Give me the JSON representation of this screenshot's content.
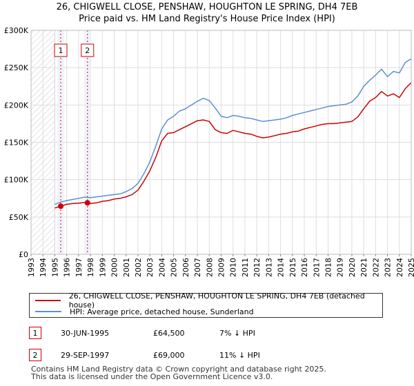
{
  "chart_data": {
    "type": "line",
    "title": "26, CHIGWELL CLOSE, PENSHAW, HOUGHTON LE SPRING, DH4 7EB",
    "subtitle": "Price paid vs. HM Land Registry's House Price Index (HPI)",
    "xlabel": "",
    "ylabel": "",
    "xlim": [
      1993,
      2025
    ],
    "ylim": [
      0,
      300000
    ],
    "y_ticks": [
      0,
      50000,
      100000,
      150000,
      200000,
      250000,
      300000
    ],
    "y_tick_labels": [
      "£0",
      "£50K",
      "£100K",
      "£150K",
      "£200K",
      "£250K",
      "£300K"
    ],
    "x_ticks": [
      1993,
      1994,
      1995,
      1996,
      1997,
      1998,
      1999,
      2000,
      2001,
      2002,
      2003,
      2004,
      2005,
      2006,
      2007,
      2008,
      2009,
      2010,
      2011,
      2012,
      2013,
      2014,
      2015,
      2016,
      2017,
      2018,
      2019,
      2020,
      2021,
      2022,
      2023,
      2024,
      2025
    ],
    "grid": true,
    "hatched_range": [
      1993,
      1995.0
    ],
    "series": [
      {
        "name": "26, CHIGWELL CLOSE, PENSHAW, HOUGHTON LE SPRING, DH4 7EB (detached house)",
        "color": "#cc0000",
        "x": [
          1995.0,
          1995.5,
          1996.0,
          1996.5,
          1997.0,
          1997.5,
          1997.75,
          1998.0,
          1998.5,
          1999.0,
          1999.5,
          2000.0,
          2000.5,
          2001.0,
          2001.5,
          2002.0,
          2002.5,
          2003.0,
          2003.5,
          2004.0,
          2004.5,
          2005.0,
          2005.5,
          2006.0,
          2006.5,
          2007.0,
          2007.5,
          2008.0,
          2008.5,
          2009.0,
          2009.5,
          2010.0,
          2010.5,
          2011.0,
          2011.5,
          2012.0,
          2012.5,
          2013.0,
          2013.5,
          2014.0,
          2014.5,
          2015.0,
          2015.5,
          2016.0,
          2016.5,
          2017.0,
          2017.5,
          2018.0,
          2018.5,
          2019.0,
          2019.5,
          2020.0,
          2020.5,
          2021.0,
          2021.5,
          2022.0,
          2022.5,
          2023.0,
          2023.5,
          2024.0,
          2024.5,
          2025.0
        ],
        "values": [
          62000,
          64500,
          67000,
          68000,
          68500,
          69500,
          69000,
          68000,
          69000,
          71000,
          72000,
          74000,
          75000,
          77000,
          80000,
          86000,
          98000,
          112000,
          130000,
          152000,
          162000,
          163000,
          167000,
          171000,
          175000,
          179000,
          180000,
          178000,
          167000,
          163000,
          162000,
          166000,
          164000,
          162000,
          161000,
          158000,
          156000,
          157000,
          159000,
          161000,
          162000,
          164000,
          165000,
          168000,
          170000,
          172000,
          174000,
          175000,
          175000,
          176000,
          177000,
          178000,
          184000,
          195000,
          205000,
          210000,
          218000,
          212000,
          215000,
          210000,
          222000,
          230000
        ]
      },
      {
        "name": "HPI: Average price, detached house, Sunderland",
        "color": "#5b8fd0",
        "x": [
          1995.0,
          1995.5,
          1996.0,
          1996.5,
          1997.0,
          1997.5,
          1998.0,
          1998.5,
          1999.0,
          1999.5,
          2000.0,
          2000.5,
          2001.0,
          2001.5,
          2002.0,
          2002.5,
          2003.0,
          2003.5,
          2004.0,
          2004.5,
          2005.0,
          2005.5,
          2006.0,
          2006.5,
          2007.0,
          2007.5,
          2008.0,
          2008.5,
          2009.0,
          2009.5,
          2010.0,
          2010.5,
          2011.0,
          2011.5,
          2012.0,
          2012.5,
          2013.0,
          2013.5,
          2014.0,
          2014.5,
          2015.0,
          2015.5,
          2016.0,
          2016.5,
          2017.0,
          2017.5,
          2018.0,
          2018.5,
          2019.0,
          2019.5,
          2020.0,
          2020.5,
          2021.0,
          2021.5,
          2022.0,
          2022.5,
          2023.0,
          2023.5,
          2024.0,
          2024.5,
          2025.0
        ],
        "values": [
          67000,
          70000,
          72000,
          73500,
          75000,
          76500,
          76000,
          77000,
          78000,
          79000,
          80000,
          81000,
          84000,
          88000,
          95000,
          108000,
          124000,
          145000,
          168000,
          180000,
          185000,
          192000,
          195000,
          200000,
          205000,
          209000,
          206000,
          196000,
          185000,
          183000,
          186000,
          185000,
          183000,
          182000,
          180000,
          178000,
          179000,
          180000,
          181000,
          183000,
          186000,
          188000,
          190000,
          192000,
          194000,
          196000,
          198000,
          199000,
          200000,
          201000,
          204000,
          212000,
          225000,
          233000,
          240000,
          248000,
          238000,
          245000,
          243000,
          257000,
          262000
        ]
      }
    ],
    "markers": [
      {
        "label": "1",
        "x": 1995.5,
        "y": 64500
      },
      {
        "label": "2",
        "x": 1997.75,
        "y": 69000
      }
    ]
  },
  "legend": {
    "series1_label": "26, CHIGWELL CLOSE, PENSHAW, HOUGHTON LE SPRING, DH4 7EB (detached house)",
    "series2_label": "HPI: Average price, detached house, Sunderland"
  },
  "transactions": [
    {
      "number": "1",
      "date": "30-JUN-1995",
      "price": "£64,500",
      "hpi": "7% ↓ HPI"
    },
    {
      "number": "2",
      "date": "29-SEP-1997",
      "price": "£69,000",
      "hpi": "11% ↓ HPI"
    }
  ],
  "footer": {
    "line1": "Contains HM Land Registry data © Crown copyright and database right 2025.",
    "line2": "This data is licensed under the Open Government Licence v3.0."
  }
}
